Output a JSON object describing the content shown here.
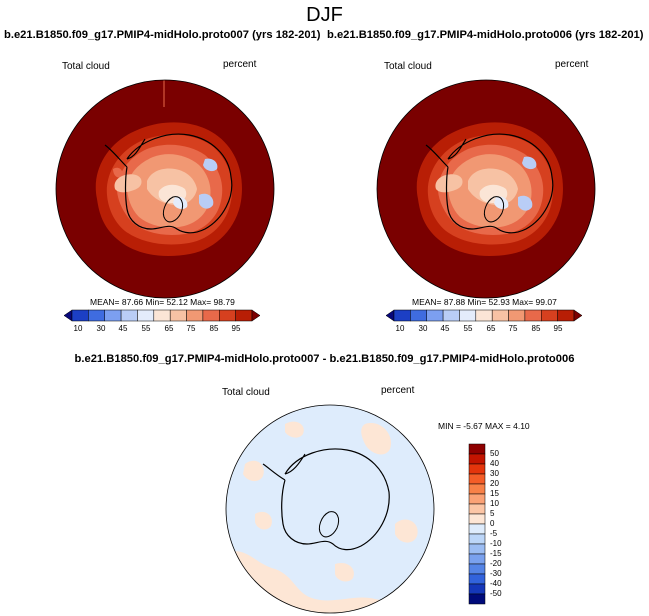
{
  "season": "DJF",
  "panels": [
    {
      "title": "b.e21.B1850.f09_g17.PMIP4-midHolo.proto007 (yrs 182-201)",
      "variable": "Total cloud",
      "units": "percent",
      "stats": "MEAN=  87.66  Min=  52.12  Max=  98.79"
    },
    {
      "title": "b.e21.B1850.f09_g17.PMIP4-midHolo.proto006 (yrs 182-201)",
      "variable": "Total cloud",
      "units": "percent",
      "stats": "MEAN=  87.88  Min=  52.93  Max=  99.07"
    }
  ],
  "colorbar": {
    "labels": [
      "10",
      "30",
      "45",
      "55",
      "65",
      "75",
      "85",
      "95"
    ],
    "colors": [
      "#08087a",
      "#1c3fc4",
      "#3f6ce0",
      "#7c9ff0",
      "#b9cdf6",
      "#e4ecfb",
      "#fbe5d6",
      "#f7c2a4",
      "#f19873",
      "#e8694a",
      "#d6401f",
      "#b81e05",
      "#7a0000"
    ]
  },
  "difference": {
    "title": "b.e21.B1850.f09_g17.PMIP4-midHolo.proto007 - b.e21.B1850.f09_g17.PMIP4-midHolo.proto006",
    "variable": "Total cloud",
    "units": "percent",
    "stats": "MIN =  -5.67 MAX =   4.10",
    "colorbar_labels": [
      "50",
      "40",
      "30",
      "20",
      "15",
      "10",
      "5",
      "0",
      "-5",
      "-10",
      "-15",
      "-20",
      "-30",
      "-40",
      "-50"
    ],
    "colorbar_colors": [
      "#8e0000",
      "#c21400",
      "#e4350c",
      "#f45d28",
      "#f88148",
      "#fba276",
      "#fcc6a6",
      "#fde6d5",
      "#deecfc",
      "#bcd6f8",
      "#9cbdf3",
      "#7aa1ee",
      "#5584e6",
      "#3263dc",
      "#1537b9",
      "#000a7a"
    ]
  }
}
